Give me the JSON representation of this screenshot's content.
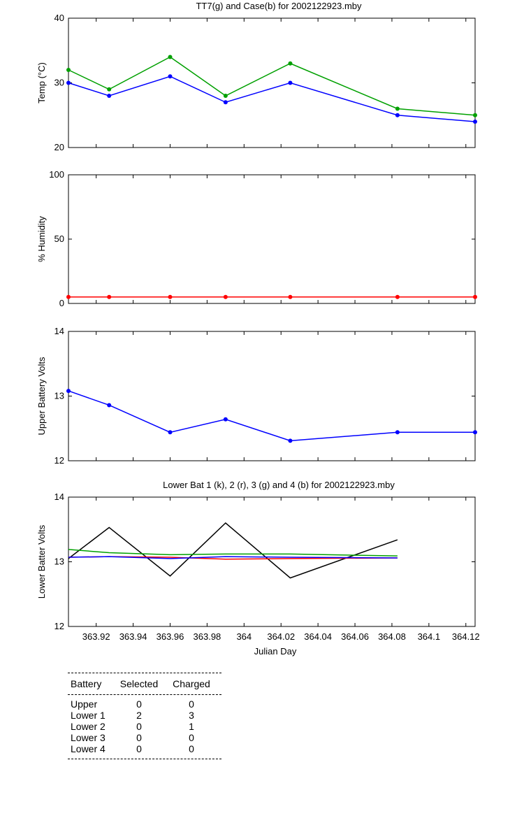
{
  "chart_data": [
    {
      "type": "line",
      "title": "TT7(g) and Case(b) for 2002122923.mby",
      "xlabel": "",
      "ylabel": "Temp  (°C)",
      "xlim": [
        363.905,
        364.125
      ],
      "ylim": [
        20,
        40
      ],
      "yticks": [
        20,
        30,
        40
      ],
      "grid": false,
      "x": [
        363.905,
        363.927,
        363.96,
        363.99,
        364.025,
        364.083,
        364.125
      ],
      "series": [
        {
          "color": "#00a000",
          "values": [
            32,
            29,
            34,
            28,
            33,
            26,
            25
          ]
        },
        {
          "color": "#0000ff",
          "values": [
            30,
            28,
            31,
            27,
            30,
            25,
            24
          ]
        }
      ]
    },
    {
      "type": "line",
      "title": "",
      "xlabel": "",
      "ylabel": "% Humidity",
      "xlim": [
        363.905,
        364.125
      ],
      "ylim": [
        0,
        100
      ],
      "yticks": [
        0,
        50,
        100
      ],
      "grid": false,
      "x": [
        363.905,
        363.927,
        363.96,
        363.99,
        364.025,
        364.083,
        364.125
      ],
      "series": [
        {
          "color": "#ff0000",
          "values": [
            5,
            5,
            5,
            5,
            5,
            5,
            5
          ]
        }
      ]
    },
    {
      "type": "line",
      "title": "",
      "xlabel": "",
      "ylabel": "Upper Battery Volts",
      "xlim": [
        363.905,
        364.125
      ],
      "ylim": [
        12,
        14
      ],
      "yticks": [
        12,
        13,
        14
      ],
      "grid": false,
      "x": [
        363.905,
        363.927,
        363.96,
        363.99,
        364.025,
        364.083,
        364.125
      ],
      "series": [
        {
          "color": "#0000ff",
          "values": [
            13.08,
            12.86,
            12.44,
            12.64,
            12.31,
            12.44,
            12.44
          ]
        }
      ]
    },
    {
      "type": "line",
      "title": "Lower Bat 1 (k), 2 (r), 3 (g) and 4 (b) for 2002122923.mby",
      "xlabel": "Julian Day",
      "ylabel": "Lower Batter Volts",
      "xlim": [
        363.905,
        364.125
      ],
      "ylim": [
        12,
        14
      ],
      "yticks": [
        12,
        13,
        14
      ],
      "xticks": [
        363.92,
        363.94,
        363.96,
        363.98,
        364,
        364.02,
        364.04,
        364.06,
        364.08,
        364.1,
        364.12
      ],
      "xtick_labels": [
        "363.92",
        "363.94",
        "363.96",
        "363.98",
        "364",
        "364.02",
        "364.04",
        "364.06",
        "364.08",
        "364.1",
        "364.12"
      ],
      "grid": false,
      "x": [
        363.905,
        363.927,
        363.96,
        363.99,
        364.025,
        364.083
      ],
      "series": [
        {
          "color": "#000000",
          "values": [
            13.05,
            13.53,
            12.78,
            13.6,
            12.75,
            13.34
          ]
        },
        {
          "color": "#ff0000",
          "values": [
            13.07,
            13.08,
            13.07,
            13.04,
            13.05,
            13.06
          ]
        },
        {
          "color": "#00a000",
          "values": [
            13.19,
            13.14,
            13.11,
            13.12,
            13.12,
            13.09
          ]
        },
        {
          "color": "#0000ff",
          "values": [
            13.07,
            13.08,
            13.05,
            13.08,
            13.07,
            13.06
          ]
        }
      ]
    }
  ],
  "battery_table": {
    "headers": [
      "Battery",
      "Selected",
      "Charged"
    ],
    "rows": [
      [
        "Upper",
        "0",
        "0"
      ],
      [
        "Lower 1",
        "2",
        "3"
      ],
      [
        "Lower 2",
        "0",
        "1"
      ],
      [
        "Lower 3",
        "0",
        "0"
      ],
      [
        "Lower 4",
        "0",
        "0"
      ]
    ]
  }
}
